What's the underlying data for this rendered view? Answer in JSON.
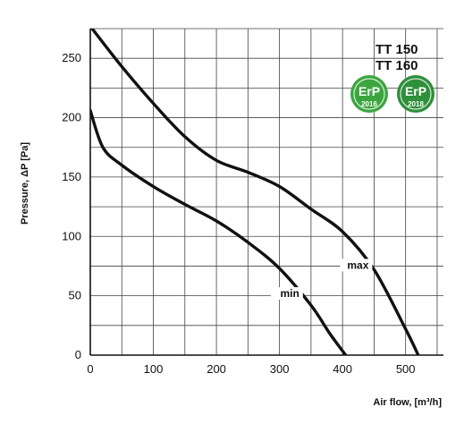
{
  "chart_data": {
    "type": "line",
    "xlabel": "Air flow, [m³/h]",
    "ylabel": "Pressure, ΔP [Pa]",
    "xlim": [
      0,
      560
    ],
    "ylim": [
      0,
      275
    ],
    "x_ticks": [
      0,
      100,
      200,
      300,
      400,
      500
    ],
    "y_ticks": [
      0,
      50,
      100,
      150,
      200,
      250
    ],
    "grid": true,
    "models": [
      "TT 150",
      "TT 160"
    ],
    "series": [
      {
        "name": "max",
        "x": [
          0,
          50,
          100,
          150,
          200,
          250,
          300,
          350,
          400,
          450,
          500,
          520
        ],
        "y": [
          277,
          243,
          212,
          184,
          164,
          154,
          142,
          123,
          104,
          72,
          22,
          0
        ]
      },
      {
        "name": "min",
        "x": [
          0,
          20,
          50,
          100,
          150,
          200,
          250,
          300,
          350,
          380,
          405
        ],
        "y": [
          206,
          175,
          160,
          142,
          127,
          113,
          95,
          73,
          42,
          18,
          0
        ]
      }
    ],
    "badges": [
      {
        "label": "ErP",
        "year": "2016",
        "color": "#3ba640"
      },
      {
        "label": "ErP",
        "year": "2018",
        "color": "#2f8f3a"
      }
    ]
  }
}
